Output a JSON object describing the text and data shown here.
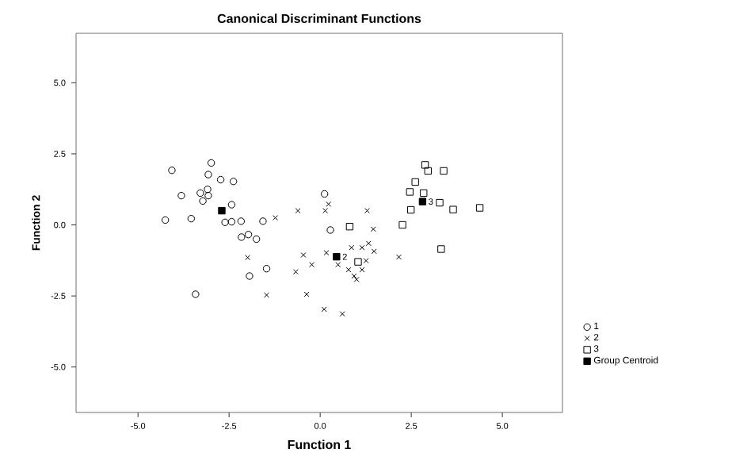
{
  "chart_data": {
    "type": "scatter",
    "title": "Canonical Discriminant Functions",
    "xlabel": "Function 1",
    "ylabel": "Function 2",
    "xlim": [
      -6.7,
      6.65
    ],
    "ylim": [
      -6.6,
      6.74
    ],
    "xticks": [
      {
        "value": -5,
        "label": "-5.0"
      },
      {
        "value": -2.5,
        "label": "-2.5"
      },
      {
        "value": 0,
        "label": "0.0"
      },
      {
        "value": 2.5,
        "label": "2.5"
      },
      {
        "value": 5,
        "label": "5.0"
      }
    ],
    "yticks": [
      {
        "value": -5,
        "label": "-5.0"
      },
      {
        "value": -2.5,
        "label": "-2.5"
      },
      {
        "value": 0,
        "label": "0.0"
      },
      {
        "value": 2.5,
        "label": "2.5"
      },
      {
        "value": 5,
        "label": "5.0"
      }
    ],
    "legend": "right",
    "series": [
      {
        "name": "1",
        "color": "#000000",
        "marker": "circle",
        "x": [
          -4.07,
          -2.99,
          -3.07,
          -2.73,
          -2.38,
          -3.81,
          -3.29,
          -3.09,
          -3.07,
          -3.22,
          -2.43,
          -4.25,
          -3.54,
          -2.61,
          -2.43,
          -2.17,
          -1.57,
          -2.16,
          -1.97,
          -1.75,
          -1.47,
          -1.94,
          -3.42,
          0.12,
          0.28
        ],
        "values": [
          1.92,
          2.18,
          1.77,
          1.59,
          1.53,
          1.03,
          1.12,
          1.25,
          1.03,
          0.84,
          0.71,
          0.17,
          0.22,
          0.09,
          0.11,
          0.13,
          0.13,
          -0.43,
          -0.34,
          -0.5,
          -1.54,
          -1.8,
          -2.44,
          1.09,
          -0.18
        ]
      },
      {
        "name": "2",
        "color": "#000000",
        "marker": "cross",
        "x": [
          -1.23,
          -0.61,
          -1.99,
          -0.46,
          -0.23,
          -0.67,
          -1.47,
          -0.37,
          0.11,
          0.14,
          0.23,
          1.29,
          1.46,
          0.61,
          0.17,
          0.49,
          0.86,
          1.15,
          1.33,
          1.48,
          1.26,
          0.78,
          0.93,
          1.0,
          1.15,
          2.16
        ],
        "values": [
          0.25,
          0.5,
          -1.15,
          -1.06,
          -1.4,
          -1.65,
          -2.47,
          -2.44,
          -2.97,
          0.5,
          0.73,
          0.5,
          -0.15,
          -3.13,
          -0.98,
          -1.4,
          -0.8,
          -0.8,
          -0.65,
          -0.93,
          -1.26,
          -1.58,
          -1.8,
          -1.92,
          -1.58,
          -1.13
        ]
      },
      {
        "name": "3",
        "color": "#000000",
        "marker": "square",
        "x": [
          2.88,
          2.96,
          3.39,
          2.61,
          2.46,
          2.84,
          3.28,
          2.49,
          3.65,
          4.38,
          0.81,
          2.26,
          3.32,
          1.04
        ],
        "values": [
          2.11,
          1.9,
          1.9,
          1.51,
          1.16,
          1.12,
          0.78,
          0.53,
          0.54,
          0.6,
          -0.06,
          0.0,
          -0.85,
          -1.3
        ]
      },
      {
        "name": "Group Centroid",
        "color": "#000000",
        "marker": "square",
        "x": [
          -2.7,
          0.45,
          2.81
        ],
        "values": [
          0.5,
          -1.12,
          0.82
        ]
      }
    ],
    "annotations": [
      {
        "text": "2",
        "x": 0.45,
        "y": -1.12
      },
      {
        "text": "3",
        "x": 2.81,
        "y": 0.82
      }
    ]
  }
}
